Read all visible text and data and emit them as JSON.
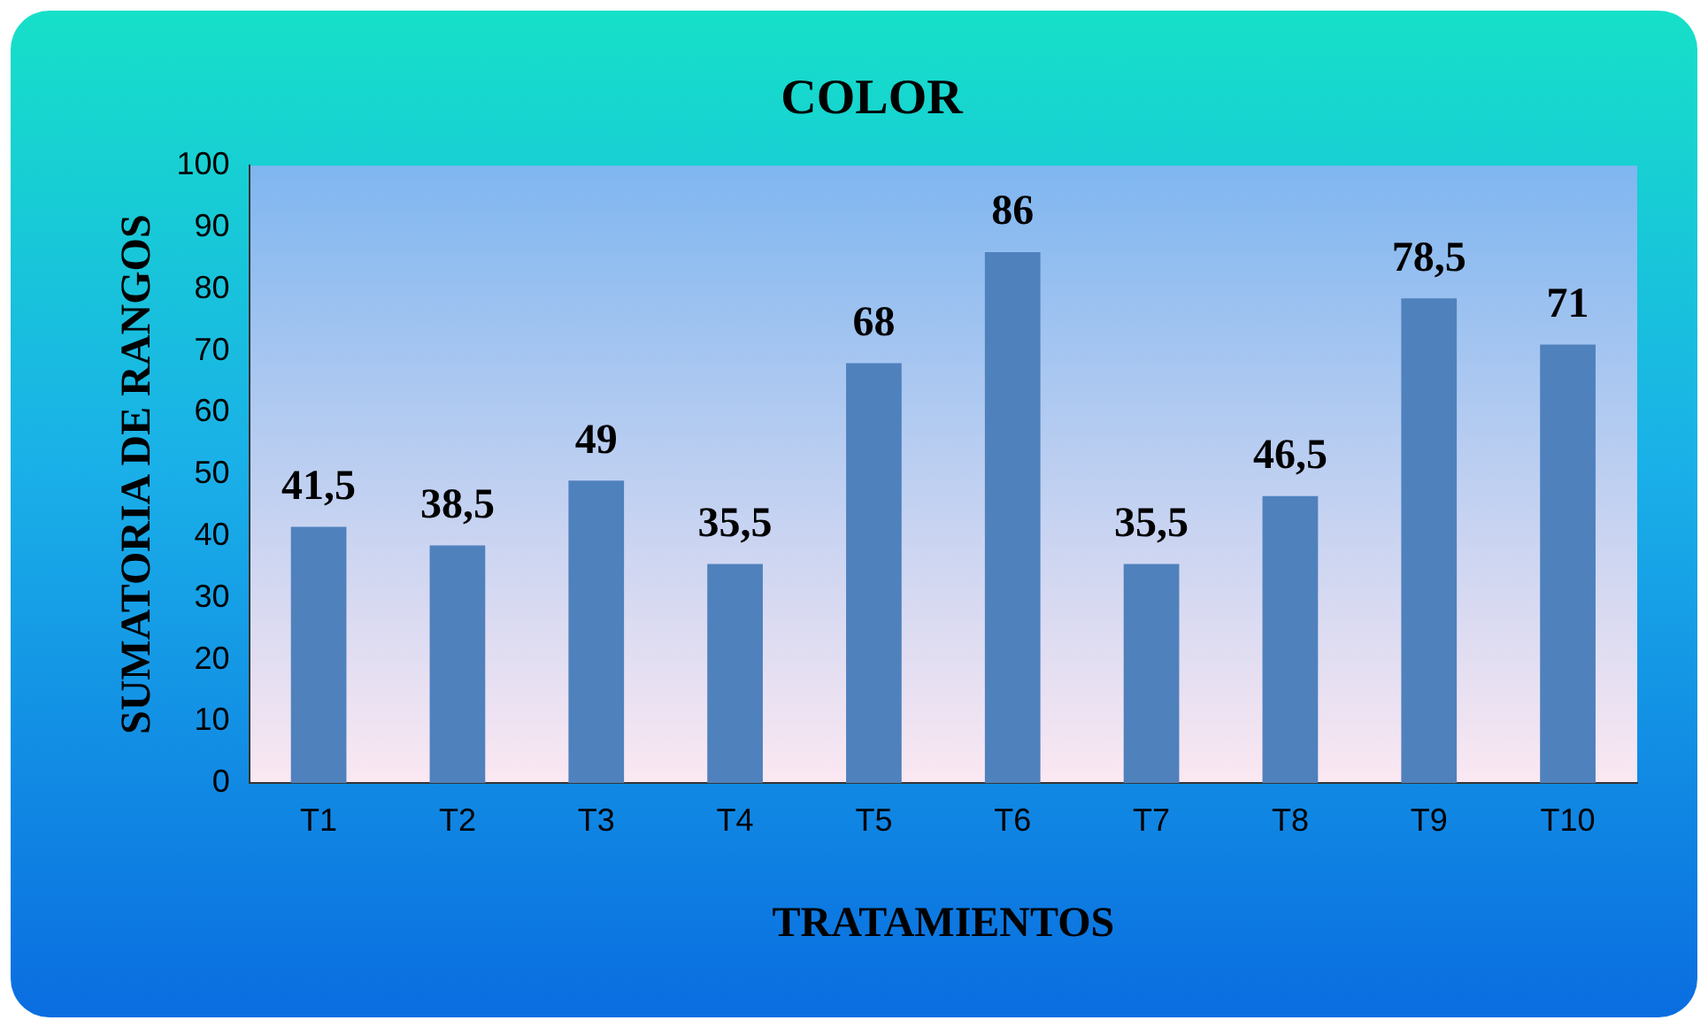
{
  "chart_data": {
    "type": "bar",
    "title": "COLOR",
    "xlabel": "TRATAMIENTOS",
    "ylabel": "SUMATORIA DE RANGOS",
    "categories": [
      "T1",
      "T2",
      "T3",
      "T4",
      "T5",
      "T6",
      "T7",
      "T8",
      "T9",
      "T10"
    ],
    "values": [
      41.5,
      38.5,
      49,
      35.5,
      68,
      86,
      35.5,
      46.5,
      78.5,
      71
    ],
    "value_labels": [
      "41,5",
      "38,5",
      "49",
      "35,5",
      "68",
      "86",
      "35,5",
      "46,5",
      "78,5",
      "71"
    ],
    "color": "#4f81bd",
    "ylim": [
      0,
      100
    ],
    "yticks": [
      0,
      10,
      20,
      30,
      40,
      50,
      60,
      70,
      80,
      90,
      100
    ],
    "grid": false,
    "legend": false
  }
}
